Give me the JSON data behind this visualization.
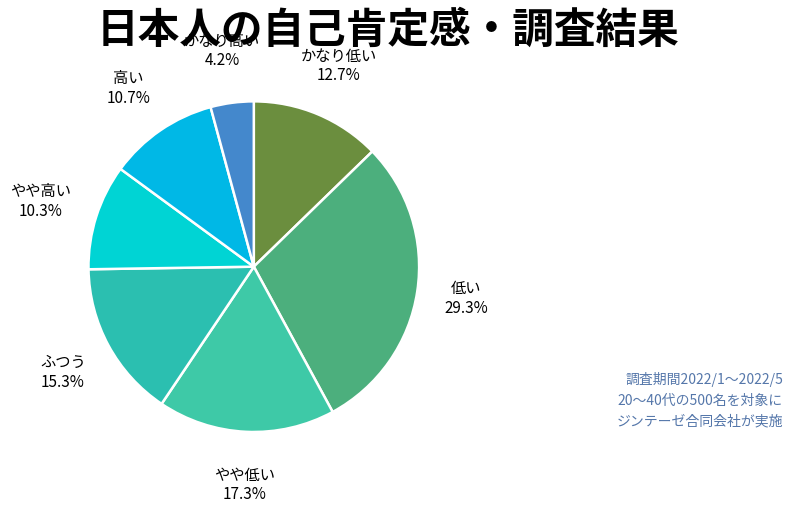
{
  "title": "日本人の自己肯定感・調査結果",
  "slices": [
    {
      "label": "かなり低い",
      "pct": 12.7,
      "color": "#6b8e3e"
    },
    {
      "label": "低い",
      "pct": 29.3,
      "color": "#4caf7d"
    },
    {
      "label": "やや低い",
      "pct": 17.3,
      "color": "#3ec9a7"
    },
    {
      "label": "ふつう",
      "pct": 15.3,
      "color": "#2bbfb0"
    },
    {
      "label": "やや高い",
      "pct": 10.3,
      "color": "#00d4d4"
    },
    {
      "label": "高い",
      "pct": 10.7,
      "color": "#00b8e6"
    },
    {
      "label": "かなり高い",
      "pct": 4.2,
      "color": "#4488cc"
    }
  ],
  "note_lines": [
    "調査期間2022/1〜2022/5",
    "20〜40代の500名を対象に",
    "ジンテーゼ合同会社が実施"
  ],
  "note_color": "#5577aa",
  "bg_color": "#ffffff",
  "title_fontsize": 30,
  "label_fontsize": 11,
  "note_fontsize": 10
}
